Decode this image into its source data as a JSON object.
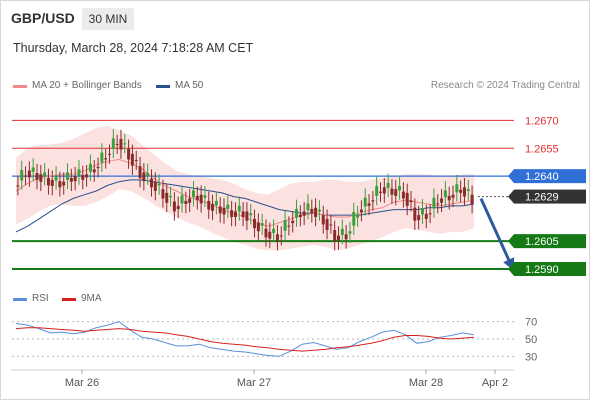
{
  "header": {
    "title": "GBP/USD",
    "timeframe": "30 MIN",
    "datetime": "Thursday, March 28, 2024 7:18:28 AM CET"
  },
  "legend": {
    "ma": {
      "label": "MA 20 + Bollinger Bands",
      "color": "#f08a8a"
    },
    "ma50": {
      "label": "MA 50",
      "color": "#2a4f8a"
    },
    "credit": "Research © 2024 Trading Central"
  },
  "rsi_legend": {
    "rsi": {
      "label": "RSI",
      "color": "#5b8fd9"
    },
    "ma9": {
      "label": "9MA",
      "color": "#d62020"
    }
  },
  "chart_data": {
    "type": "line",
    "title": "GBP/USD",
    "ylim": [
      1.2583,
      1.2681
    ],
    "x_ticks": [
      "Mar 26",
      "Mar 27",
      "Mar 28",
      "Apr 2"
    ],
    "levels": [
      {
        "value": 1.267,
        "label": "1.2670",
        "kind": "resistance",
        "color": "#e03030"
      },
      {
        "value": 1.2655,
        "label": "1.2655",
        "kind": "resistance",
        "color": "#e03030"
      },
      {
        "value": 1.264,
        "label": "1.2640",
        "kind": "pivot",
        "color": "#2f6fd6"
      },
      {
        "value": 1.2629,
        "label": "1.2629",
        "kind": "last",
        "color": "#333333"
      },
      {
        "value": 1.2605,
        "label": "1.2605",
        "kind": "support",
        "color": "#157a15"
      },
      {
        "value": 1.259,
        "label": "1.2590",
        "kind": "support",
        "color": "#157a15"
      }
    ],
    "price_path": [
      1.2635,
      1.2643,
      1.2641,
      1.2638,
      1.2637,
      1.264,
      1.2641,
      1.2645,
      1.2652,
      1.266,
      1.2652,
      1.2642,
      1.2637,
      1.2631,
      1.2624,
      1.2628,
      1.263,
      1.2625,
      1.2623,
      1.2621,
      1.2621,
      1.2615,
      1.261,
      1.2608,
      1.2616,
      1.2621,
      1.2623,
      1.2617,
      1.2608,
      1.2609,
      1.2622,
      1.2627,
      1.2634,
      1.2633,
      1.2631,
      1.2619,
      1.262,
      1.2628,
      1.263,
      1.2634,
      1.2628
    ],
    "ma20": [
      1.2632,
      1.2636,
      1.2639,
      1.264,
      1.2641,
      1.2641,
      1.2643,
      1.2646,
      1.2648,
      1.2649,
      1.2647,
      1.2644,
      1.2639,
      1.2635,
      1.2632,
      1.2629,
      1.2627,
      1.2625,
      1.2622,
      1.262,
      1.2618,
      1.2615,
      1.2613,
      1.2615,
      1.2617,
      1.2619,
      1.262,
      1.2619,
      1.2618,
      1.2618,
      1.262,
      1.2622,
      1.2623,
      1.2626,
      1.2627,
      1.2626,
      1.2625,
      1.2624,
      1.2625,
      1.2626,
      1.2627
    ],
    "ma50": [
      1.261,
      1.2613,
      1.2617,
      1.2621,
      1.2625,
      1.2628,
      1.263,
      1.2632,
      1.2635,
      1.2637,
      1.2638,
      1.2638,
      1.2637,
      1.2636,
      1.2635,
      1.2634,
      1.2633,
      1.2632,
      1.2631,
      1.2629,
      1.2628,
      1.2626,
      1.2624,
      1.2622,
      1.2621,
      1.262,
      1.262,
      1.2619,
      1.2619,
      1.2619,
      1.2619,
      1.262,
      1.2621,
      1.2622,
      1.2622,
      1.2622,
      1.2623,
      1.2623,
      1.2624,
      1.2624,
      1.2625
    ],
    "bb_upper": [
      1.265,
      1.2655,
      1.2657,
      1.2657,
      1.2658,
      1.266,
      1.2663,
      1.2666,
      1.2667,
      1.2665,
      1.2662,
      1.2657,
      1.2652,
      1.2647,
      1.2643,
      1.2641,
      1.264,
      1.2639,
      1.2638,
      1.2636,
      1.2633,
      1.2631,
      1.263,
      1.2633,
      1.2636,
      1.2637,
      1.2637,
      1.2638,
      1.2638,
      1.2637,
      1.2637,
      1.2638,
      1.2639,
      1.264,
      1.2641,
      1.2641,
      1.2641,
      1.264,
      1.264,
      1.2641,
      1.2641
    ],
    "bb_lower": [
      1.2614,
      1.2617,
      1.2621,
      1.2624,
      1.2625,
      1.2624,
      1.2624,
      1.2626,
      1.2629,
      1.2633,
      1.2632,
      1.2629,
      1.2625,
      1.2621,
      1.2618,
      1.2615,
      1.2613,
      1.261,
      1.2607,
      1.2605,
      1.2603,
      1.2601,
      1.26,
      1.26,
      1.2601,
      1.2602,
      1.2603,
      1.2602,
      1.26,
      1.2601,
      1.2603,
      1.2605,
      1.2607,
      1.261,
      1.2612,
      1.2611,
      1.261,
      1.2609,
      1.261,
      1.261,
      1.2612
    ],
    "forecast": {
      "from": 1.2629,
      "to": 1.259
    },
    "rsi": {
      "ylim": [
        20,
        80
      ],
      "ticks": [
        70,
        50,
        30
      ],
      "values": [
        68,
        66,
        62,
        57,
        58,
        56,
        58,
        63,
        66,
        70,
        60,
        52,
        50,
        46,
        42,
        42,
        44,
        40,
        38,
        36,
        35,
        33,
        31,
        30,
        36,
        44,
        46,
        42,
        38,
        40,
        47,
        52,
        58,
        60,
        55,
        45,
        47,
        52,
        54,
        57,
        55
      ],
      "ma9": [
        62,
        63,
        63,
        62,
        61,
        60,
        59,
        60,
        61,
        62,
        61,
        59,
        58,
        57,
        55,
        53,
        50,
        47,
        45,
        44,
        43,
        41,
        40,
        38,
        37,
        36,
        37,
        38,
        40,
        41,
        43,
        45,
        48,
        52,
        54,
        54,
        53,
        51,
        50,
        51,
        52
      ]
    }
  }
}
